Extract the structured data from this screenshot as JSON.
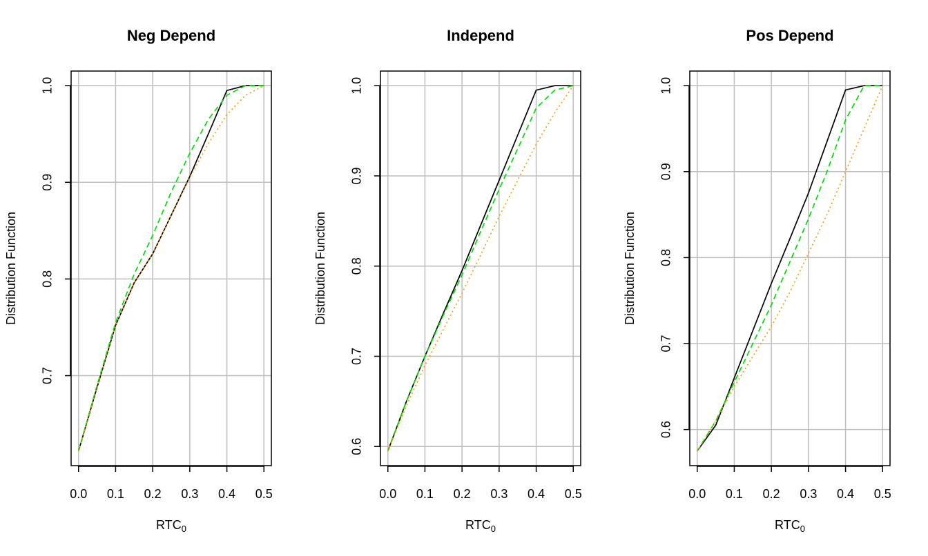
{
  "chart_data": [
    {
      "type": "line",
      "title": "Neg Depend",
      "xlabel": {
        "text": "RTC",
        "subscript": "0"
      },
      "ylabel": "Distribution Function",
      "x": [
        0,
        0.05,
        0.1,
        0.15,
        0.2,
        0.25,
        0.3,
        0.35,
        0.4,
        0.45,
        0.5
      ],
      "series": [
        {
          "color": "#000000",
          "linestyle": "solid",
          "values": [
            0.622,
            0.688,
            0.752,
            0.796,
            0.826,
            0.866,
            0.906,
            0.95,
            0.995,
            1.0,
            1.0
          ]
        },
        {
          "color": "#00dd00",
          "linestyle": "dashed",
          "values": [
            0.622,
            0.69,
            0.755,
            0.805,
            0.845,
            0.89,
            0.93,
            0.965,
            0.99,
            1.0,
            1.0
          ]
        },
        {
          "color": "#ff9900",
          "linestyle": "dotted",
          "values": [
            0.622,
            0.688,
            0.752,
            0.796,
            0.826,
            0.866,
            0.905,
            0.94,
            0.97,
            0.99,
            1.0
          ]
        }
      ],
      "xlim": [
        -0.02,
        0.52
      ],
      "ylim": [
        0.6069,
        1.0151
      ],
      "xticks": [
        {
          "value": 0,
          "label": "0.0"
        },
        0.1,
        0.2,
        0.3,
        0.4,
        0.5
      ],
      "yticks": [
        0.7,
        0.8,
        0.9,
        {
          "value": 1,
          "label": "1.0"
        }
      ],
      "grid": true
    },
    {
      "type": "line",
      "title": "Independ",
      "xlabel": {
        "text": "RTC",
        "subscript": "0"
      },
      "ylabel": "Distribution Function",
      "x": [
        0,
        0.05,
        0.1,
        0.15,
        0.2,
        0.25,
        0.3,
        0.35,
        0.4,
        0.45,
        0.5
      ],
      "series": [
        {
          "color": "#000000",
          "linestyle": "solid",
          "values": [
            0.595,
            0.65,
            0.7,
            0.748,
            0.795,
            0.845,
            0.895,
            0.945,
            0.995,
            1.0,
            1.0
          ]
        },
        {
          "color": "#00dd00",
          "linestyle": "dashed",
          "values": [
            0.595,
            0.65,
            0.7,
            0.746,
            0.79,
            0.838,
            0.885,
            0.93,
            0.975,
            0.995,
            1.0
          ]
        },
        {
          "color": "#ff9900",
          "linestyle": "dotted",
          "values": [
            0.595,
            0.645,
            0.69,
            0.73,
            0.77,
            0.812,
            0.855,
            0.895,
            0.935,
            0.97,
            1.0
          ]
        }
      ],
      "xlim": [
        -0.02,
        0.52
      ],
      "ylim": [
        0.5788,
        1.0162
      ],
      "xticks": [
        {
          "value": 0,
          "label": "0.0"
        },
        0.1,
        0.2,
        0.3,
        0.4,
        0.5
      ],
      "yticks": [
        0.6,
        0.7,
        0.8,
        0.9,
        {
          "value": 1,
          "label": "1.0"
        }
      ],
      "grid": true
    },
    {
      "type": "line",
      "title": "Pos Depend",
      "xlabel": {
        "text": "RTC",
        "subscript": "0"
      },
      "ylabel": "Distribution Function",
      "x": [
        0,
        0.05,
        0.1,
        0.15,
        0.2,
        0.25,
        0.3,
        0.35,
        0.4,
        0.45,
        0.5
      ],
      "series": [
        {
          "color": "#000000",
          "linestyle": "solid",
          "values": [
            0.575,
            0.605,
            0.66,
            0.715,
            0.77,
            0.822,
            0.875,
            0.935,
            0.995,
            1.0,
            1.0
          ]
        },
        {
          "color": "#00dd00",
          "linestyle": "dashed",
          "values": [
            0.575,
            0.61,
            0.655,
            0.7,
            0.745,
            0.795,
            0.845,
            0.9,
            0.96,
            1.0,
            1.0
          ]
        },
        {
          "color": "#ff9900",
          "linestyle": "dotted",
          "values": [
            0.575,
            0.61,
            0.65,
            0.685,
            0.72,
            0.76,
            0.805,
            0.85,
            0.9,
            0.95,
            1.0
          ]
        }
      ],
      "xlim": [
        -0.02,
        0.52
      ],
      "ylim": [
        0.558,
        1.017
      ],
      "xticks": [
        {
          "value": 0,
          "label": "0.0"
        },
        0.1,
        0.2,
        0.3,
        0.4,
        0.5
      ],
      "yticks": [
        0.6,
        0.7,
        0.8,
        0.9,
        {
          "value": 1,
          "label": "1.0"
        }
      ],
      "grid": true
    }
  ]
}
